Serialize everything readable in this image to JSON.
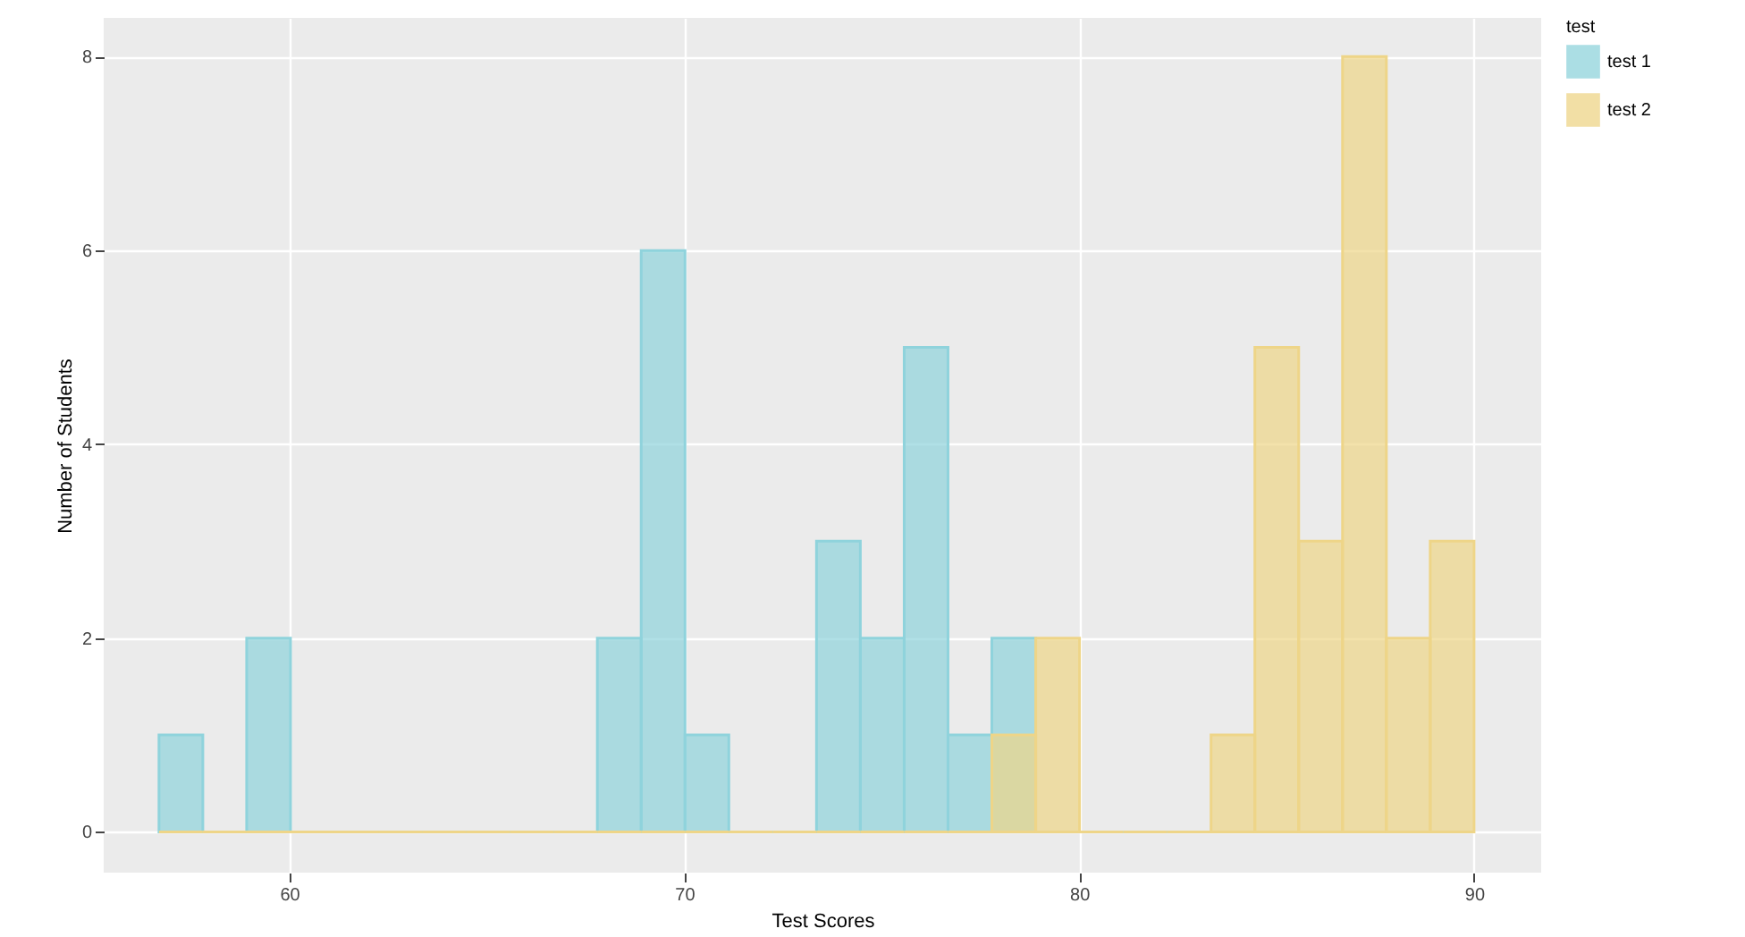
{
  "chart_data": {
    "type": "histogram",
    "xlabel": "Test Scores",
    "ylabel": "Number of Students",
    "legend_title": "test",
    "bins": [
      56.7,
      57.81,
      58.92,
      60.03,
      61.14,
      62.25,
      63.36,
      64.47,
      65.58,
      66.69,
      67.8,
      68.91,
      70.02,
      71.13,
      72.24,
      73.35,
      74.46,
      75.57,
      76.68,
      77.79,
      78.9,
      80.01,
      81.12,
      82.23,
      83.34,
      84.45,
      85.56,
      86.67,
      87.78,
      88.89,
      90.0
    ],
    "series": [
      {
        "name": "test 1",
        "color": "#8fd3dc",
        "values": [
          1,
          0,
          2,
          0,
          0,
          0,
          0,
          0,
          0,
          0,
          2,
          6,
          1,
          0,
          0,
          3,
          2,
          5,
          1,
          2,
          0,
          0,
          0,
          0,
          0,
          0,
          0,
          0,
          0,
          0
        ]
      },
      {
        "name": "test 2",
        "color": "#eed588",
        "values": [
          0,
          0,
          0,
          0,
          0,
          0,
          0,
          0,
          0,
          0,
          0,
          0,
          0,
          0,
          0,
          0,
          0,
          0,
          0,
          1,
          2,
          0,
          0,
          0,
          1,
          5,
          3,
          8,
          2,
          3
        ]
      }
    ],
    "xlim": [
      55.3,
      91.7
    ],
    "xticks": [
      60,
      70,
      80,
      90
    ],
    "ylim": [
      -0.42,
      8.4
    ],
    "yticks": [
      0,
      2,
      4,
      6,
      8
    ],
    "grid": true,
    "legend": "right"
  }
}
